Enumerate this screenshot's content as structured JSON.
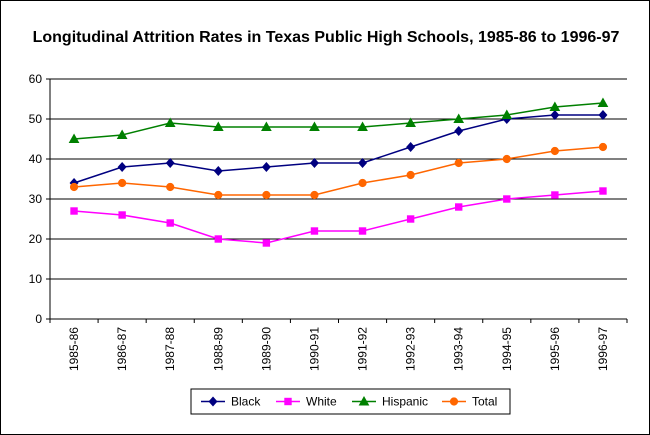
{
  "chart_data": {
    "type": "line",
    "title": "Longitudinal Attrition Rates in Texas Public High Schools, 1985-86 to 1996-97",
    "xlabel": "",
    "ylabel": "",
    "ylim": [
      0,
      60
    ],
    "yticks": [
      0,
      10,
      20,
      30,
      40,
      50,
      60
    ],
    "grid": "horizontal",
    "legend": "bottom",
    "categories": [
      "1985-86",
      "1986-87",
      "1987-88",
      "1988-89",
      "1989-90",
      "1990-91",
      "1991-92",
      "1992-93",
      "1993-94",
      "1994-95",
      "1995-96",
      "1996-97"
    ],
    "series": [
      {
        "name": "Black",
        "color": "#000080",
        "marker": "diamond",
        "values": [
          34,
          38,
          39,
          37,
          38,
          39,
          39,
          43,
          47,
          50,
          51,
          51
        ]
      },
      {
        "name": "White",
        "color": "#FF00FF",
        "marker": "square",
        "values": [
          27,
          26,
          24,
          20,
          19,
          22,
          22,
          25,
          28,
          30,
          31,
          32
        ]
      },
      {
        "name": "Hispanic",
        "color": "#008000",
        "marker": "triangle",
        "values": [
          45,
          46,
          49,
          48,
          48,
          48,
          48,
          49,
          50,
          51,
          53,
          54
        ]
      },
      {
        "name": "Total",
        "color": "#FF6600",
        "marker": "circle",
        "values": [
          33,
          34,
          33,
          31,
          31,
          31,
          34,
          36,
          39,
          40,
          42,
          43
        ]
      }
    ]
  }
}
